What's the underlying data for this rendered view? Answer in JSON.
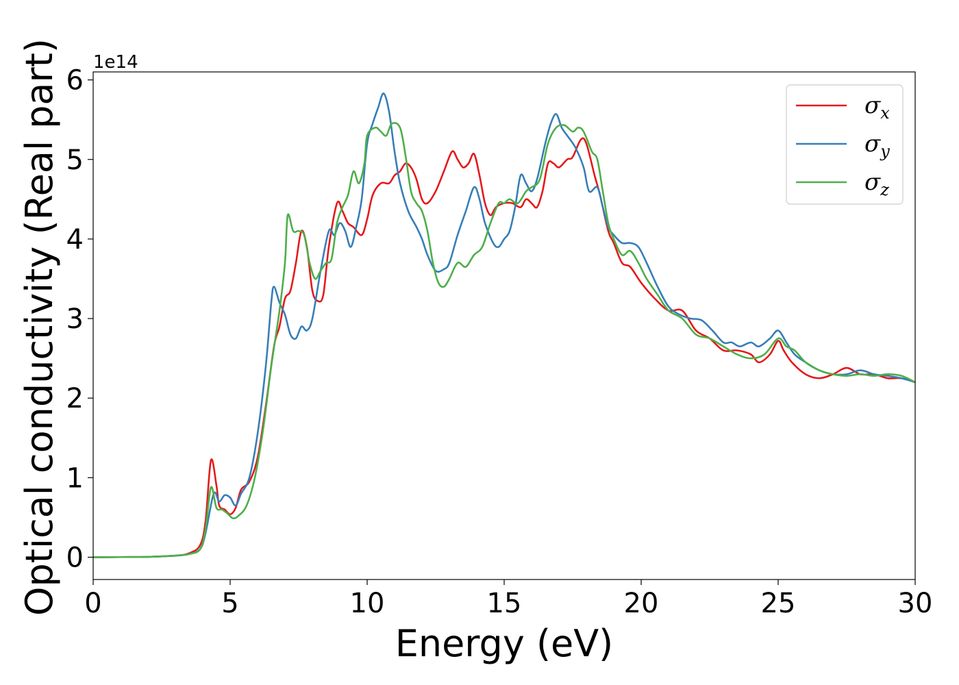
{
  "chart_data": {
    "type": "line",
    "title": "",
    "xlabel": "Energy (eV)",
    "ylabel": "Optical conductivity (Real part)",
    "y_offset_label": "1e14",
    "xlim": [
      0,
      30
    ],
    "ylim": [
      -0.28,
      6.1
    ],
    "xticks": [
      0,
      5,
      10,
      15,
      20,
      25,
      30
    ],
    "xtick_labels": [
      "0",
      "5",
      "10",
      "15",
      "20",
      "25",
      "30"
    ],
    "yticks": [
      0,
      1,
      2,
      3,
      4,
      5,
      6
    ],
    "ytick_labels": [
      "0",
      "1",
      "2",
      "3",
      "4",
      "5",
      "6"
    ],
    "grid": false,
    "legend_position": "top-right",
    "series": [
      {
        "name": "σx",
        "symbol": "σ",
        "subscript": "x",
        "color": "#e41a1c",
        "points": [
          [
            0,
            0
          ],
          [
            1,
            0.002
          ],
          [
            2,
            0.005
          ],
          [
            3,
            0.02
          ],
          [
            3.5,
            0.05
          ],
          [
            3.9,
            0.15
          ],
          [
            4.1,
            0.45
          ],
          [
            4.3,
            1.22
          ],
          [
            4.5,
            0.9
          ],
          [
            4.6,
            0.65
          ],
          [
            4.8,
            0.6
          ],
          [
            5.0,
            0.54
          ],
          [
            5.2,
            0.62
          ],
          [
            5.4,
            0.85
          ],
          [
            5.7,
            0.95
          ],
          [
            6.0,
            1.25
          ],
          [
            6.3,
            1.9
          ],
          [
            6.6,
            2.65
          ],
          [
            6.8,
            2.9
          ],
          [
            7.0,
            3.25
          ],
          [
            7.2,
            3.35
          ],
          [
            7.4,
            3.7
          ],
          [
            7.6,
            4.1
          ],
          [
            7.8,
            3.9
          ],
          [
            8.0,
            3.35
          ],
          [
            8.2,
            3.22
          ],
          [
            8.4,
            3.3
          ],
          [
            8.6,
            3.9
          ],
          [
            8.9,
            4.45
          ],
          [
            9.1,
            4.35
          ],
          [
            9.3,
            4.2
          ],
          [
            9.5,
            4.15
          ],
          [
            9.8,
            4.05
          ],
          [
            10.0,
            4.25
          ],
          [
            10.2,
            4.55
          ],
          [
            10.5,
            4.7
          ],
          [
            10.8,
            4.7
          ],
          [
            11.0,
            4.8
          ],
          [
            11.2,
            4.85
          ],
          [
            11.4,
            4.95
          ],
          [
            11.6,
            4.9
          ],
          [
            11.8,
            4.75
          ],
          [
            12.0,
            4.5
          ],
          [
            12.2,
            4.45
          ],
          [
            12.5,
            4.6
          ],
          [
            12.8,
            4.85
          ],
          [
            13.1,
            5.1
          ],
          [
            13.3,
            5.0
          ],
          [
            13.5,
            4.9
          ],
          [
            13.7,
            4.95
          ],
          [
            13.9,
            5.07
          ],
          [
            14.1,
            4.8
          ],
          [
            14.3,
            4.45
          ],
          [
            14.5,
            4.3
          ],
          [
            14.7,
            4.4
          ],
          [
            15.0,
            4.45
          ],
          [
            15.3,
            4.45
          ],
          [
            15.6,
            4.4
          ],
          [
            15.8,
            4.5
          ],
          [
            16.0,
            4.45
          ],
          [
            16.2,
            4.4
          ],
          [
            16.4,
            4.6
          ],
          [
            16.6,
            4.95
          ],
          [
            16.8,
            4.95
          ],
          [
            17.0,
            4.9
          ],
          [
            17.3,
            5.0
          ],
          [
            17.5,
            5.03
          ],
          [
            17.8,
            5.25
          ],
          [
            18.0,
            5.2
          ],
          [
            18.3,
            4.8
          ],
          [
            18.5,
            4.55
          ],
          [
            18.8,
            4.1
          ],
          [
            19.0,
            3.95
          ],
          [
            19.3,
            3.7
          ],
          [
            19.6,
            3.65
          ],
          [
            20.0,
            3.45
          ],
          [
            20.5,
            3.25
          ],
          [
            21.0,
            3.1
          ],
          [
            21.5,
            3.1
          ],
          [
            22.0,
            2.85
          ],
          [
            22.5,
            2.75
          ],
          [
            23.0,
            2.6
          ],
          [
            23.5,
            2.6
          ],
          [
            24.0,
            2.55
          ],
          [
            24.3,
            2.45
          ],
          [
            24.7,
            2.55
          ],
          [
            25.0,
            2.72
          ],
          [
            25.2,
            2.6
          ],
          [
            25.5,
            2.45
          ],
          [
            26.0,
            2.3
          ],
          [
            26.5,
            2.25
          ],
          [
            27.0,
            2.3
          ],
          [
            27.5,
            2.38
          ],
          [
            28.0,
            2.3
          ],
          [
            28.5,
            2.3
          ],
          [
            29.0,
            2.25
          ],
          [
            29.5,
            2.25
          ],
          [
            30.0,
            2.2
          ]
        ]
      },
      {
        "name": "σy",
        "symbol": "σ",
        "subscript": "y",
        "color": "#377eb8",
        "points": [
          [
            0,
            0
          ],
          [
            1,
            0.002
          ],
          [
            2,
            0.005
          ],
          [
            3,
            0.02
          ],
          [
            3.5,
            0.04
          ],
          [
            3.9,
            0.1
          ],
          [
            4.1,
            0.3
          ],
          [
            4.4,
            0.8
          ],
          [
            4.6,
            0.7
          ],
          [
            4.8,
            0.78
          ],
          [
            5.0,
            0.75
          ],
          [
            5.2,
            0.65
          ],
          [
            5.4,
            0.8
          ],
          [
            5.7,
            1.0
          ],
          [
            6.0,
            1.55
          ],
          [
            6.3,
            2.4
          ],
          [
            6.5,
            3.2
          ],
          [
            6.6,
            3.4
          ],
          [
            6.8,
            3.2
          ],
          [
            7.0,
            3.05
          ],
          [
            7.2,
            2.8
          ],
          [
            7.4,
            2.75
          ],
          [
            7.6,
            2.9
          ],
          [
            7.8,
            2.85
          ],
          [
            8.0,
            3.0
          ],
          [
            8.3,
            3.6
          ],
          [
            8.6,
            4.1
          ],
          [
            8.8,
            4.05
          ],
          [
            9.0,
            4.2
          ],
          [
            9.2,
            4.1
          ],
          [
            9.4,
            3.9
          ],
          [
            9.6,
            4.15
          ],
          [
            9.8,
            4.5
          ],
          [
            10.0,
            5.2
          ],
          [
            10.2,
            5.45
          ],
          [
            10.4,
            5.65
          ],
          [
            10.6,
            5.83
          ],
          [
            10.8,
            5.6
          ],
          [
            11.0,
            5.1
          ],
          [
            11.2,
            4.7
          ],
          [
            11.5,
            4.35
          ],
          [
            11.8,
            4.15
          ],
          [
            12.0,
            4.0
          ],
          [
            12.2,
            3.8
          ],
          [
            12.5,
            3.6
          ],
          [
            12.8,
            3.62
          ],
          [
            13.0,
            3.7
          ],
          [
            13.3,
            4.05
          ],
          [
            13.6,
            4.35
          ],
          [
            13.9,
            4.65
          ],
          [
            14.1,
            4.5
          ],
          [
            14.3,
            4.2
          ],
          [
            14.6,
            3.95
          ],
          [
            14.8,
            3.9
          ],
          [
            15.0,
            4.0
          ],
          [
            15.2,
            4.1
          ],
          [
            15.4,
            4.4
          ],
          [
            15.6,
            4.8
          ],
          [
            15.8,
            4.7
          ],
          [
            16.0,
            4.6
          ],
          [
            16.2,
            4.75
          ],
          [
            16.5,
            5.2
          ],
          [
            16.7,
            5.45
          ],
          [
            16.9,
            5.57
          ],
          [
            17.1,
            5.4
          ],
          [
            17.3,
            5.3
          ],
          [
            17.6,
            5.15
          ],
          [
            17.9,
            4.9
          ],
          [
            18.1,
            4.6
          ],
          [
            18.4,
            4.65
          ],
          [
            18.6,
            4.4
          ],
          [
            18.8,
            4.15
          ],
          [
            19.0,
            4.05
          ],
          [
            19.3,
            3.95
          ],
          [
            19.6,
            3.95
          ],
          [
            19.9,
            3.9
          ],
          [
            20.2,
            3.7
          ],
          [
            20.6,
            3.4
          ],
          [
            21.0,
            3.15
          ],
          [
            21.4,
            3.05
          ],
          [
            21.8,
            3.0
          ],
          [
            22.2,
            2.98
          ],
          [
            22.6,
            2.85
          ],
          [
            23.0,
            2.7
          ],
          [
            23.3,
            2.7
          ],
          [
            23.6,
            2.65
          ],
          [
            24.0,
            2.7
          ],
          [
            24.3,
            2.65
          ],
          [
            24.7,
            2.75
          ],
          [
            25.0,
            2.85
          ],
          [
            25.3,
            2.7
          ],
          [
            25.6,
            2.55
          ],
          [
            26.0,
            2.45
          ],
          [
            26.5,
            2.35
          ],
          [
            27.0,
            2.3
          ],
          [
            27.5,
            2.3
          ],
          [
            28.0,
            2.35
          ],
          [
            28.5,
            2.3
          ],
          [
            29.0,
            2.28
          ],
          [
            29.5,
            2.25
          ],
          [
            30.0,
            2.2
          ]
        ]
      },
      {
        "name": "σz",
        "symbol": "σ",
        "subscript": "z",
        "color": "#4daf4a",
        "points": [
          [
            0,
            0
          ],
          [
            1,
            0.002
          ],
          [
            2,
            0.005
          ],
          [
            3,
            0.02
          ],
          [
            3.5,
            0.04
          ],
          [
            3.9,
            0.1
          ],
          [
            4.1,
            0.35
          ],
          [
            4.3,
            0.88
          ],
          [
            4.5,
            0.62
          ],
          [
            4.7,
            0.6
          ],
          [
            4.9,
            0.55
          ],
          [
            5.1,
            0.49
          ],
          [
            5.3,
            0.52
          ],
          [
            5.6,
            0.65
          ],
          [
            5.9,
            1.0
          ],
          [
            6.2,
            1.6
          ],
          [
            6.5,
            2.4
          ],
          [
            6.8,
            3.1
          ],
          [
            7.0,
            3.7
          ],
          [
            7.1,
            4.3
          ],
          [
            7.3,
            4.1
          ],
          [
            7.5,
            4.1
          ],
          [
            7.7,
            4.05
          ],
          [
            7.9,
            3.7
          ],
          [
            8.1,
            3.5
          ],
          [
            8.3,
            3.6
          ],
          [
            8.5,
            3.7
          ],
          [
            8.7,
            3.75
          ],
          [
            8.9,
            4.2
          ],
          [
            9.1,
            4.4
          ],
          [
            9.3,
            4.55
          ],
          [
            9.5,
            4.85
          ],
          [
            9.7,
            4.7
          ],
          [
            9.9,
            4.95
          ],
          [
            10.0,
            5.3
          ],
          [
            10.3,
            5.4
          ],
          [
            10.5,
            5.35
          ],
          [
            10.7,
            5.3
          ],
          [
            10.9,
            5.45
          ],
          [
            11.2,
            5.4
          ],
          [
            11.4,
            5.05
          ],
          [
            11.6,
            4.6
          ],
          [
            11.8,
            4.45
          ],
          [
            12.0,
            4.35
          ],
          [
            12.2,
            4.1
          ],
          [
            12.4,
            3.7
          ],
          [
            12.6,
            3.45
          ],
          [
            12.8,
            3.4
          ],
          [
            13.0,
            3.5
          ],
          [
            13.3,
            3.7
          ],
          [
            13.6,
            3.65
          ],
          [
            13.9,
            3.8
          ],
          [
            14.2,
            3.9
          ],
          [
            14.5,
            4.2
          ],
          [
            14.8,
            4.45
          ],
          [
            15.0,
            4.45
          ],
          [
            15.2,
            4.5
          ],
          [
            15.5,
            4.45
          ],
          [
            15.8,
            4.6
          ],
          [
            16.0,
            4.65
          ],
          [
            16.3,
            4.75
          ],
          [
            16.6,
            5.2
          ],
          [
            16.9,
            5.4
          ],
          [
            17.2,
            5.43
          ],
          [
            17.5,
            5.35
          ],
          [
            17.7,
            5.4
          ],
          [
            17.9,
            5.35
          ],
          [
            18.2,
            5.1
          ],
          [
            18.4,
            5.0
          ],
          [
            18.6,
            4.6
          ],
          [
            18.8,
            4.2
          ],
          [
            19.0,
            4.0
          ],
          [
            19.3,
            3.8
          ],
          [
            19.6,
            3.85
          ],
          [
            19.9,
            3.7
          ],
          [
            20.2,
            3.5
          ],
          [
            20.6,
            3.3
          ],
          [
            21.0,
            3.1
          ],
          [
            21.5,
            3.0
          ],
          [
            22.0,
            2.8
          ],
          [
            22.5,
            2.75
          ],
          [
            23.0,
            2.65
          ],
          [
            23.5,
            2.55
          ],
          [
            24.0,
            2.5
          ],
          [
            24.5,
            2.55
          ],
          [
            25.0,
            2.75
          ],
          [
            25.3,
            2.65
          ],
          [
            25.6,
            2.6
          ],
          [
            26.0,
            2.45
          ],
          [
            26.5,
            2.35
          ],
          [
            27.0,
            2.3
          ],
          [
            27.5,
            2.28
          ],
          [
            28.0,
            2.3
          ],
          [
            28.5,
            2.28
          ],
          [
            29.0,
            2.3
          ],
          [
            29.5,
            2.28
          ],
          [
            30.0,
            2.2
          ]
        ]
      }
    ]
  }
}
